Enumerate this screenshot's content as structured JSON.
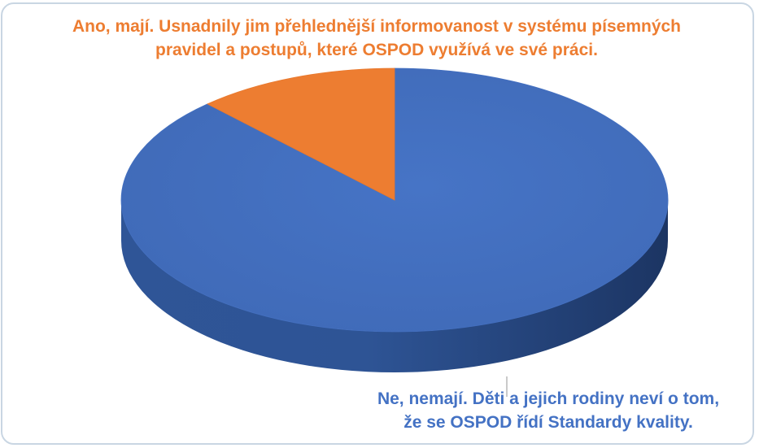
{
  "chart_data": {
    "type": "pie",
    "style": "3d",
    "categories": [
      "Ano, mají. Usnadnily jim přehlednější informovanost v systému písemných pravidel a postupů, které OSPOD využívá ve své práci.",
      "Ne, nemají. Děti a jejich rodiny neví o tom, že se OSPOD řídí Standardy kvality."
    ],
    "values": [
      12,
      88
    ],
    "colors": [
      "#ed7d31",
      "#4472c4"
    ],
    "labels": {
      "ano": {
        "line1": "Ano, mají. Usnadnily jim přehlednější informovanost v systému písemných",
        "line2": "pravidel a postupů, které OSPOD využívá ve své práci."
      },
      "ne": {
        "line1": "Ne, nemají. Děti a jejich rodiny neví o tom,",
        "line2": "že se OSPOD řídí Standardy kvality."
      }
    }
  }
}
